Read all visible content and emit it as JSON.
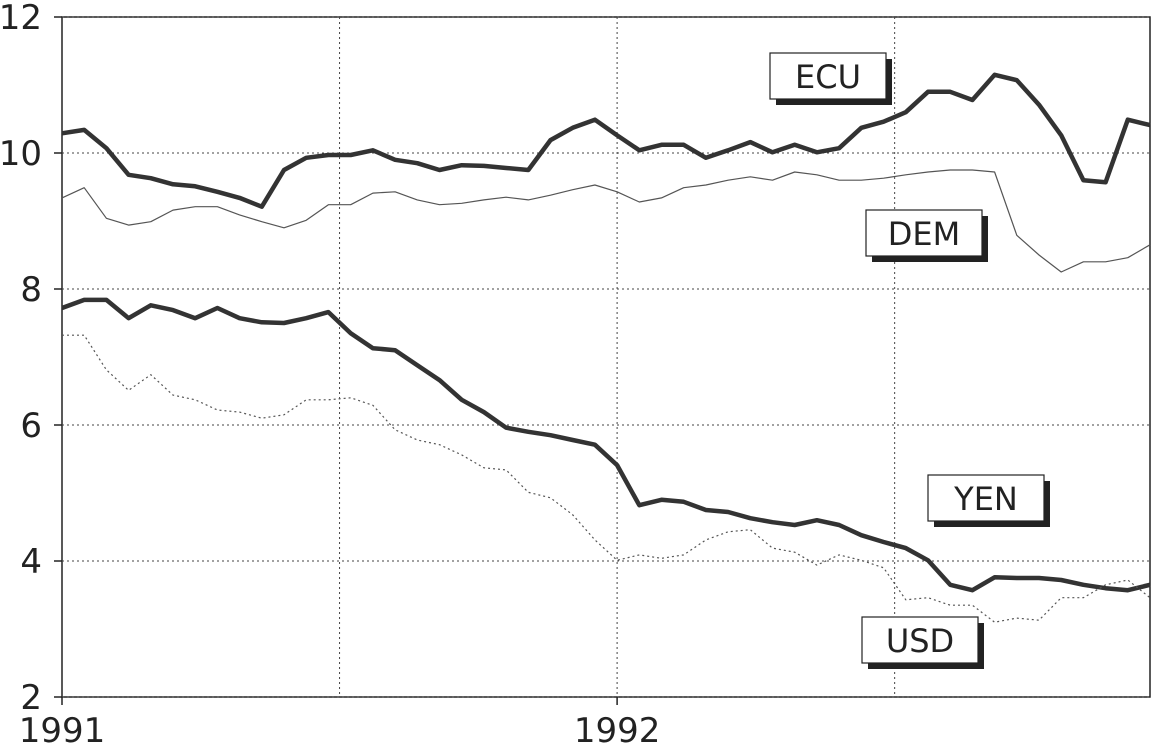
{
  "chart_data": {
    "type": "line",
    "x": [
      1991,
      1991.04,
      1991.08,
      1991.12,
      1991.16,
      1991.2,
      1991.24,
      1991.28,
      1991.32,
      1991.36,
      1991.4,
      1991.44,
      1991.48,
      1991.52,
      1991.56,
      1991.6,
      1991.64,
      1991.68,
      1991.72,
      1991.76,
      1991.8,
      1991.84,
      1991.88,
      1991.92,
      1991.96,
      1992,
      1992.04,
      1992.08,
      1992.12,
      1992.16,
      1992.2,
      1992.24,
      1992.28,
      1992.32,
      1992.36,
      1992.4,
      1992.44,
      1992.48,
      1992.52,
      1992.56,
      1992.6,
      1992.64,
      1992.68,
      1992.72,
      1992.76,
      1992.8,
      1992.84,
      1992.88,
      1992.92,
      1992.96
    ],
    "xlim": [
      1991,
      1992.96
    ],
    "xticks": [
      1991,
      1992
    ],
    "xgrid": [
      1991.5,
      1992,
      1992.5
    ],
    "ylim": [
      2,
      12
    ],
    "yticks": [
      2,
      4,
      6,
      8,
      10,
      12
    ],
    "grid": true,
    "series": [
      {
        "name": "ECU",
        "color": "#333333",
        "style": "bold",
        "values": [
          10.29,
          10.34,
          10.07,
          9.68,
          9.63,
          9.54,
          9.51,
          9.43,
          9.34,
          9.21,
          9.75,
          9.93,
          9.97,
          9.97,
          10.04,
          9.9,
          9.85,
          9.75,
          9.82,
          9.81,
          9.78,
          9.75,
          10.19,
          10.37,
          10.49,
          10.26,
          10.04,
          10.12,
          10.12,
          9.93,
          10.04,
          10.16,
          10.01,
          10.12,
          10.01,
          10.07,
          10.37,
          10.46,
          10.6,
          10.9,
          10.9,
          10.78,
          11.15,
          11.07,
          10.71,
          10.26,
          9.6,
          9.57,
          10.49,
          10.41
        ]
      },
      {
        "name": "DEM",
        "color": "#555555",
        "style": "thin",
        "values": [
          9.34,
          9.49,
          9.04,
          8.94,
          8.99,
          9.16,
          9.21,
          9.21,
          9.09,
          8.99,
          8.9,
          9.01,
          9.24,
          9.24,
          9.41,
          9.43,
          9.31,
          9.24,
          9.26,
          9.31,
          9.35,
          9.31,
          9.38,
          9.46,
          9.53,
          9.43,
          9.28,
          9.34,
          9.49,
          9.53,
          9.6,
          9.65,
          9.6,
          9.72,
          9.68,
          9.6,
          9.6,
          9.63,
          9.68,
          9.72,
          9.75,
          9.75,
          9.72,
          8.79,
          8.5,
          8.25,
          8.4,
          8.4,
          8.46,
          8.65
        ]
      },
      {
        "name": "YEN",
        "color": "#333333",
        "style": "bold",
        "values": [
          7.72,
          7.84,
          7.84,
          7.57,
          7.76,
          7.69,
          7.57,
          7.72,
          7.57,
          7.51,
          7.5,
          7.57,
          7.66,
          7.35,
          7.13,
          7.1,
          6.88,
          6.66,
          6.37,
          6.19,
          5.96,
          5.9,
          5.85,
          5.78,
          5.71,
          5.41,
          4.82,
          4.9,
          4.87,
          4.75,
          4.72,
          4.63,
          4.57,
          4.53,
          4.6,
          4.53,
          4.38,
          4.28,
          4.19,
          4.01,
          3.65,
          3.57,
          3.76,
          3.75,
          3.75,
          3.72,
          3.65,
          3.6,
          3.57,
          3.65
        ]
      },
      {
        "name": "USD",
        "color": "#555555",
        "style": "dotted",
        "values": [
          7.32,
          7.32,
          6.81,
          6.51,
          6.74,
          6.44,
          6.37,
          6.22,
          6.19,
          6.1,
          6.15,
          6.37,
          6.37,
          6.4,
          6.29,
          5.93,
          5.78,
          5.71,
          5.56,
          5.37,
          5.34,
          5.01,
          4.93,
          4.68,
          4.31,
          4.01,
          4.09,
          4.04,
          4.09,
          4.31,
          4.43,
          4.46,
          4.19,
          4.13,
          3.94,
          4.09,
          4.01,
          3.9,
          3.43,
          3.46,
          3.35,
          3.35,
          3.1,
          3.16,
          3.13,
          3.46,
          3.46,
          3.65,
          3.72,
          3.46
        ]
      }
    ]
  }
}
